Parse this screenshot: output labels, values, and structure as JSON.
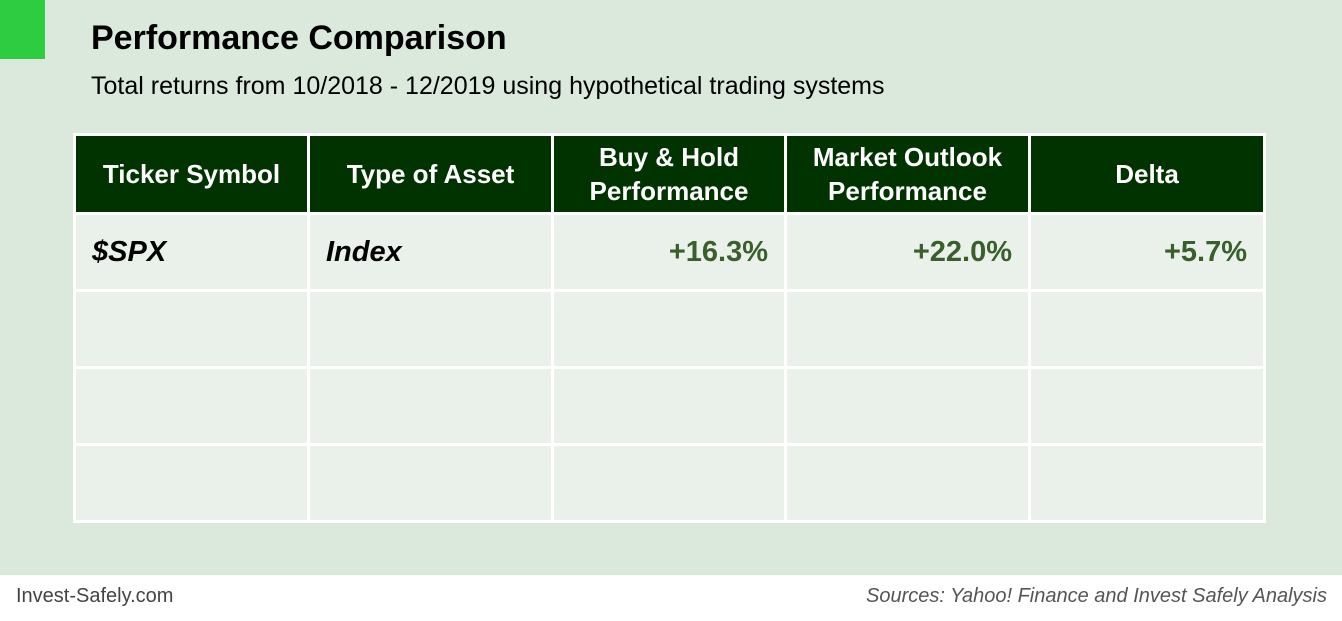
{
  "title": "Performance Comparison",
  "subtitle": "Total returns from 10/2018 - 12/2019 using hypothetical trading systems",
  "colors": {
    "accent": "#2ecc40",
    "header_bg": "#003300",
    "panel_bg": "#dbe8dc",
    "cell_bg": "#eaf1ea",
    "value_text": "#3a5e2c"
  },
  "chart_data": {
    "type": "table",
    "columns": [
      "Ticker Symbol",
      "Type of Asset",
      "Buy & Hold Performance",
      "Market Outlook Performance",
      "Delta"
    ],
    "column_lines": [
      [
        "Ticker Symbol"
      ],
      [
        "Type of Asset"
      ],
      [
        "Buy & Hold",
        "Performance"
      ],
      [
        "Market Outlook",
        "Performance"
      ],
      [
        "Delta"
      ]
    ],
    "rows": [
      [
        "$SPX",
        "Index",
        "+16.3%",
        "+22.0%",
        "+5.7%"
      ],
      [
        "",
        "",
        "",
        "",
        ""
      ],
      [
        "",
        "",
        "",
        "",
        ""
      ],
      [
        "",
        "",
        "",
        "",
        ""
      ]
    ]
  },
  "footer": {
    "left": "Invest-Safely.com",
    "right": "Sources: Yahoo! Finance and Invest Safely Analysis"
  }
}
